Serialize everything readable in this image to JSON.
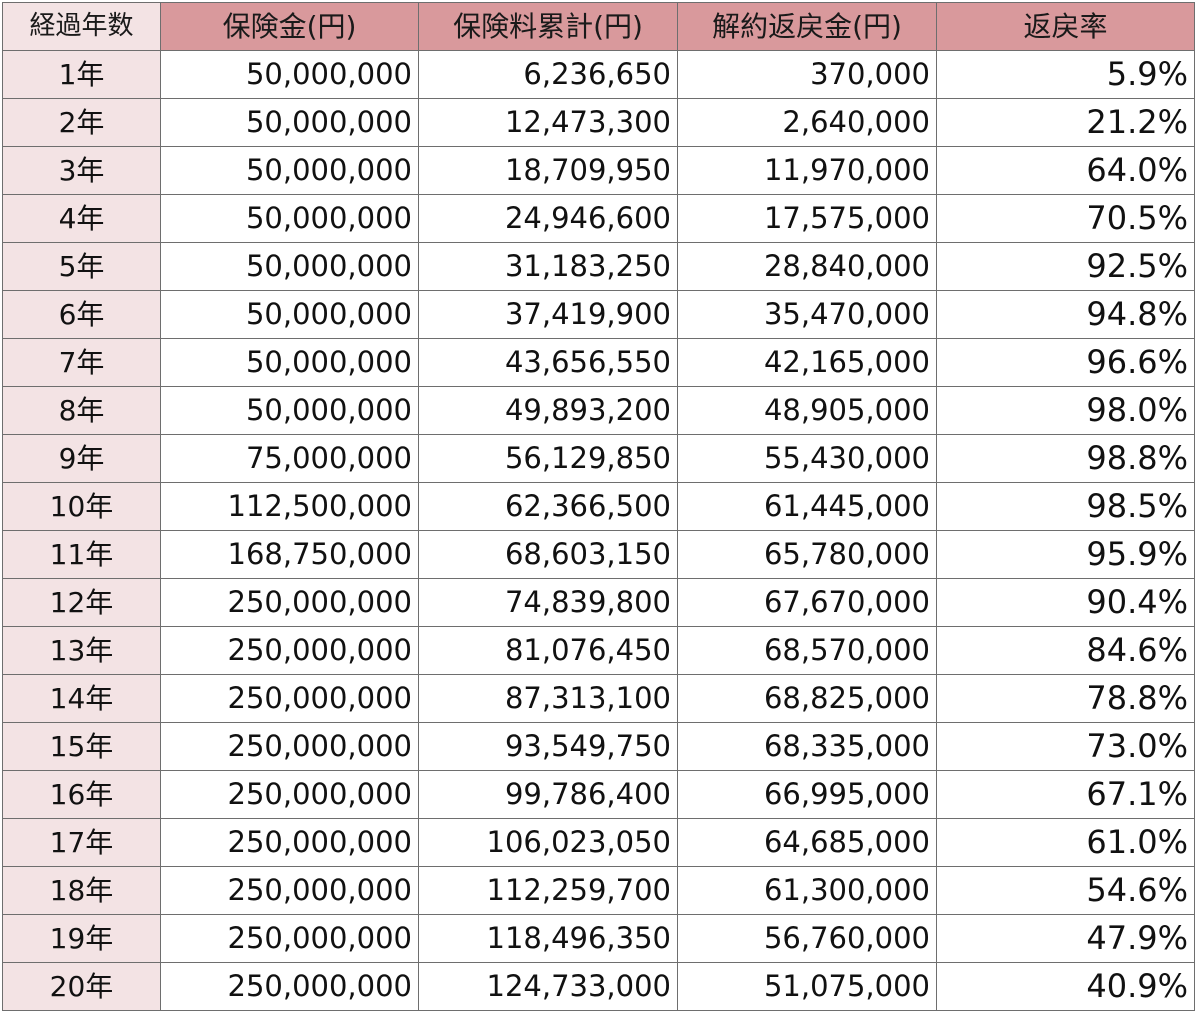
{
  "headers": [
    "経過年数",
    "保険金(円)",
    "保険料累計(円)",
    "解約返戻金(円)",
    "返戻率"
  ],
  "rows": [
    [
      "1年",
      "50,000,000",
      "6,236,650",
      "370,000",
      "5.9%"
    ],
    [
      "2年",
      "50,000,000",
      "12,473,300",
      "2,640,000",
      "21.2%"
    ],
    [
      "3年",
      "50,000,000",
      "18,709,950",
      "11,970,000",
      "64.0%"
    ],
    [
      "4年",
      "50,000,000",
      "24,946,600",
      "17,575,000",
      "70.5%"
    ],
    [
      "5年",
      "50,000,000",
      "31,183,250",
      "28,840,000",
      "92.5%"
    ],
    [
      "6年",
      "50,000,000",
      "37,419,900",
      "35,470,000",
      "94.8%"
    ],
    [
      "7年",
      "50,000,000",
      "43,656,550",
      "42,165,000",
      "96.6%"
    ],
    [
      "8年",
      "50,000,000",
      "49,893,200",
      "48,905,000",
      "98.0%"
    ],
    [
      "9年",
      "75,000,000",
      "56,129,850",
      "55,430,000",
      "98.8%"
    ],
    [
      "10年",
      "112,500,000",
      "62,366,500",
      "61,445,000",
      "98.5%"
    ],
    [
      "11年",
      "168,750,000",
      "68,603,150",
      "65,780,000",
      "95.9%"
    ],
    [
      "12年",
      "250,000,000",
      "74,839,800",
      "67,670,000",
      "90.4%"
    ],
    [
      "13年",
      "250,000,000",
      "81,076,450",
      "68,570,000",
      "84.6%"
    ],
    [
      "14年",
      "250,000,000",
      "87,313,100",
      "68,825,000",
      "78.8%"
    ],
    [
      "15年",
      "250,000,000",
      "93,549,750",
      "68,335,000",
      "73.0%"
    ],
    [
      "16年",
      "250,000,000",
      "99,786,400",
      "66,995,000",
      "67.1%"
    ],
    [
      "17年",
      "250,000,000",
      "106,023,050",
      "64,685,000",
      "61.0%"
    ],
    [
      "18年",
      "250,000,000",
      "112,259,700",
      "61,300,000",
      "54.6%"
    ],
    [
      "19年",
      "250,000,000",
      "118,496,350",
      "56,760,000",
      "47.9%"
    ],
    [
      "20年",
      "250,000,000",
      "124,733,000",
      "51,075,000",
      "40.9%"
    ]
  ],
  "colors": {
    "header_bg": "#d9999c",
    "year_col_bg": "#f3e3e4",
    "grid_line": "#6e6e6e"
  }
}
